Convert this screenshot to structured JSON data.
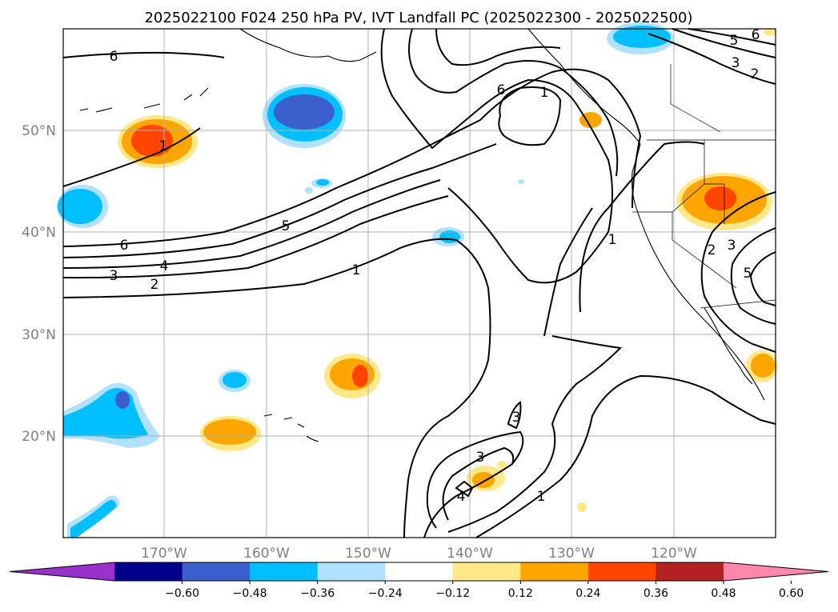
{
  "title": "2025022100 F024 250 hPa PV, IVT Landfall PC (2025022300 - 2025022500)",
  "map": {
    "lon_ticks": [
      "170°W",
      "160°W",
      "150°W",
      "140°W",
      "130°W",
      "120°W"
    ],
    "lat_ticks": [
      "50°N",
      "40°N",
      "30°N",
      "20°N"
    ],
    "grid": true
  },
  "colorbar": {
    "ticks": [
      "−0.60",
      "−0.48",
      "−0.36",
      "−0.24",
      "−0.12",
      "0.12",
      "0.24",
      "0.36",
      "0.48",
      "0.60"
    ],
    "colors": [
      "#9932cc",
      "#00008b",
      "#3a5fcd",
      "#00bfff",
      "#b0e2ff",
      "#ffffff",
      "#ffe888",
      "#ffa500",
      "#ff4500",
      "#b22222",
      "#ff88aa"
    ]
  },
  "contour_labels": [
    "6",
    "5",
    "4",
    "3",
    "2",
    "1",
    "6",
    "5",
    "3",
    "2",
    "1",
    "6",
    "1",
    "1",
    "2",
    "3",
    "5",
    "3",
    "3",
    "4",
    "1",
    "6"
  ],
  "colors": {
    "gridline": "#b0b0b0",
    "tick_label": "#808080"
  }
}
